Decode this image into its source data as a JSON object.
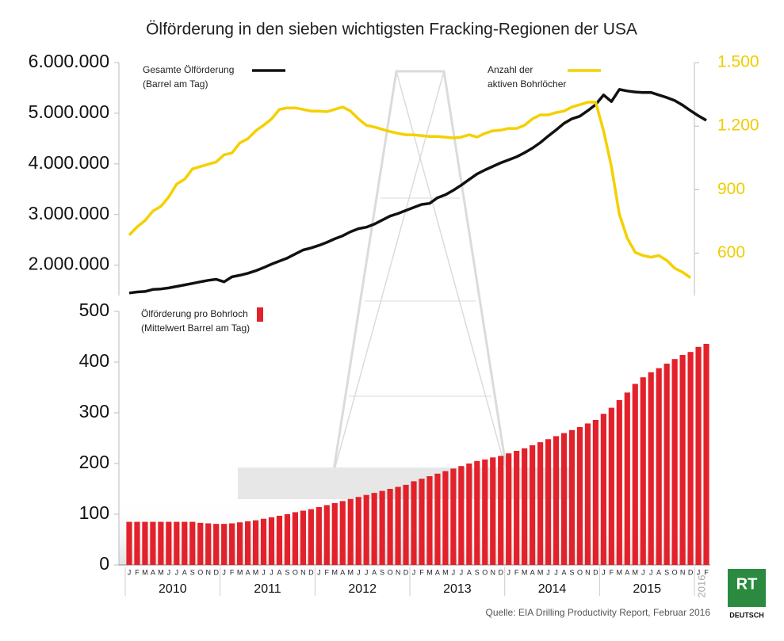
{
  "title": "Ölförderung in den sieben wichtigsten Fracking-Regionen der USA",
  "source": "Quelle: EIA Drilling Productivity Report, Februar 2016",
  "logo": {
    "name": "RT",
    "sub": "DEUTSCH"
  },
  "chart_data": [
    {
      "type": "line",
      "series": [
        {
          "name": "Gesamte Ölförderung",
          "name_line2": "(Barrel am Tag)",
          "color": "#111111",
          "axis": "y",
          "values": [
            1450000,
            1470000,
            1480000,
            1520000,
            1530000,
            1550000,
            1580000,
            1610000,
            1640000,
            1670000,
            1700000,
            1720000,
            1670000,
            1770000,
            1800000,
            1840000,
            1890000,
            1950000,
            2020000,
            2080000,
            2140000,
            2220000,
            2300000,
            2340000,
            2390000,
            2450000,
            2520000,
            2580000,
            2660000,
            2720000,
            2750000,
            2810000,
            2890000,
            2970000,
            3020000,
            3080000,
            3140000,
            3200000,
            3220000,
            3330000,
            3390000,
            3480000,
            3580000,
            3690000,
            3800000,
            3880000,
            3950000,
            4020000,
            4080000,
            4140000,
            4220000,
            4310000,
            4420000,
            4550000,
            4670000,
            4800000,
            4890000,
            4940000,
            5050000,
            5170000,
            5360000,
            5230000,
            5470000,
            5440000,
            5420000,
            5410000,
            5410000,
            5360000,
            5310000,
            5250000,
            5160000,
            5050000,
            4950000,
            4860000
          ]
        },
        {
          "name": "Anzahl der",
          "name_line2": "aktiven Bohrlöcher",
          "color": "#f5d000",
          "axis": "y2",
          "values": [
            686,
            724,
            754,
            799,
            821,
            866,
            926,
            949,
            998,
            1009,
            1020,
            1031,
            1065,
            1073,
            1121,
            1140,
            1178,
            1204,
            1234,
            1279,
            1286,
            1286,
            1279,
            1271,
            1271,
            1268,
            1279,
            1290,
            1271,
            1234,
            1204,
            1196,
            1185,
            1174,
            1166,
            1159,
            1159,
            1155,
            1151,
            1151,
            1148,
            1144,
            1148,
            1159,
            1148,
            1166,
            1178,
            1181,
            1189,
            1189,
            1204,
            1234,
            1253,
            1253,
            1264,
            1271,
            1290,
            1301,
            1313,
            1313,
            1178,
            1009,
            784,
            671,
            604,
            589,
            581,
            589,
            566,
            529,
            510,
            484,
            null,
            null
          ]
        }
      ],
      "ylim": [
        1400000,
        6000000
      ],
      "yticks": [
        {
          "value": 2000000,
          "label": "2.000.000"
        },
        {
          "value": 3000000,
          "label": "3.000.000"
        },
        {
          "value": 4000000,
          "label": "4.000.000"
        },
        {
          "value": 5000000,
          "label": "5.000.000"
        },
        {
          "value": 6000000,
          "label": "6.000.000"
        }
      ],
      "y2lim": [
        400,
        1500
      ],
      "y2ticks": [
        600,
        900,
        {
          "value": 1200,
          "label": "1.200"
        },
        {
          "value": 1500,
          "label": "1.500"
        }
      ]
    },
    {
      "type": "bar",
      "categories": [
        "J",
        "F",
        "M",
        "A",
        "M",
        "J",
        "J",
        "A",
        "S",
        "O",
        "N",
        "D",
        "J",
        "F",
        "M",
        "A",
        "M",
        "J",
        "J",
        "A",
        "S",
        "O",
        "N",
        "D",
        "J",
        "F",
        "M",
        "A",
        "M",
        "J",
        "J",
        "A",
        "S",
        "O",
        "N",
        "D",
        "J",
        "F",
        "M",
        "A",
        "M",
        "J",
        "J",
        "A",
        "S",
        "O",
        "N",
        "D",
        "J",
        "F",
        "M",
        "A",
        "M",
        "J",
        "J",
        "A",
        "S",
        "O",
        "N",
        "D",
        "J",
        "F",
        "M",
        "A",
        "M",
        "J",
        "J",
        "A",
        "S",
        "O",
        "N",
        "D",
        "J",
        "F"
      ],
      "years": [
        "2010",
        "2011",
        "2012",
        "2013",
        "2014",
        "2015",
        "2016"
      ],
      "series": [
        {
          "name": "Ölförderung pro Bohrloch",
          "name_line2": "(Mittelwert Barrel am Tag)",
          "color": "#e3212b",
          "values": [
            85,
            85,
            85,
            85,
            85,
            85,
            85,
            85,
            85,
            83,
            82,
            81,
            81,
            82,
            84,
            86,
            88,
            91,
            94,
            97,
            100,
            104,
            107,
            110,
            114,
            118,
            122,
            126,
            130,
            134,
            138,
            142,
            146,
            150,
            154,
            158,
            165,
            170,
            175,
            180,
            185,
            190,
            195,
            200,
            205,
            208,
            212,
            215,
            220,
            225,
            230,
            236,
            242,
            248,
            254,
            260,
            266,
            272,
            279,
            286,
            298,
            310,
            325,
            340,
            357,
            370,
            380,
            388,
            397,
            406,
            414,
            420,
            430,
            436
          ]
        }
      ],
      "ylim": [
        0,
        500
      ],
      "yticks": [
        0,
        100,
        200,
        300,
        400,
        500
      ]
    }
  ]
}
